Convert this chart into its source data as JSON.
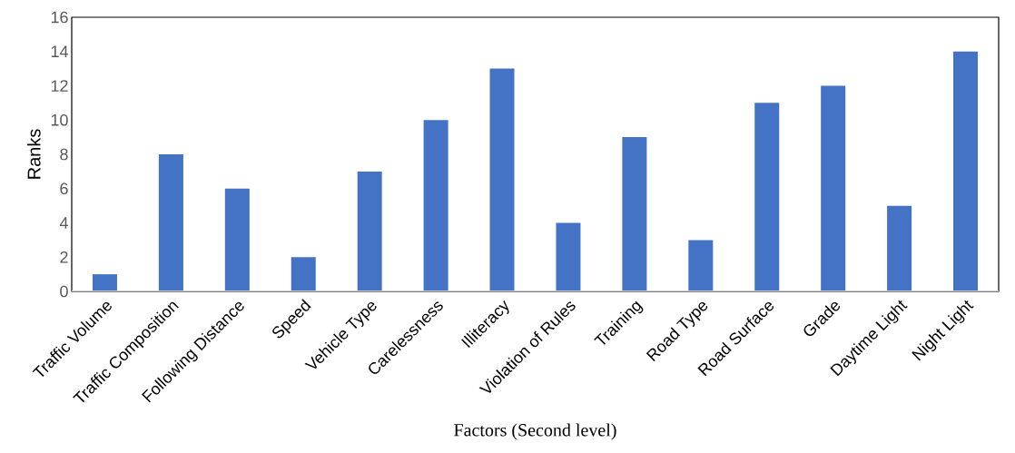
{
  "chart_data": {
    "type": "bar",
    "xlabel": "Factors (Second level)",
    "ylabel": "Ranks",
    "categories": [
      "Traffic Volume",
      "Traffic Composition",
      "Following Distance",
      "Speed",
      "Vehicle Type",
      "Carelessness",
      "Illiteracy",
      "Violation of Rules",
      "Training",
      "Road Type",
      "Road Surface",
      "Grade",
      "Daytime Light",
      "Night Light"
    ],
    "values": [
      1,
      8,
      6,
      2,
      7,
      10,
      13,
      4,
      9,
      3,
      11,
      12,
      5,
      14
    ],
    "color": "#4472c4",
    "ylim": [
      0,
      16
    ],
    "yticks": [
      0,
      2,
      4,
      6,
      8,
      10,
      12,
      14,
      16
    ],
    "grid": false
  }
}
